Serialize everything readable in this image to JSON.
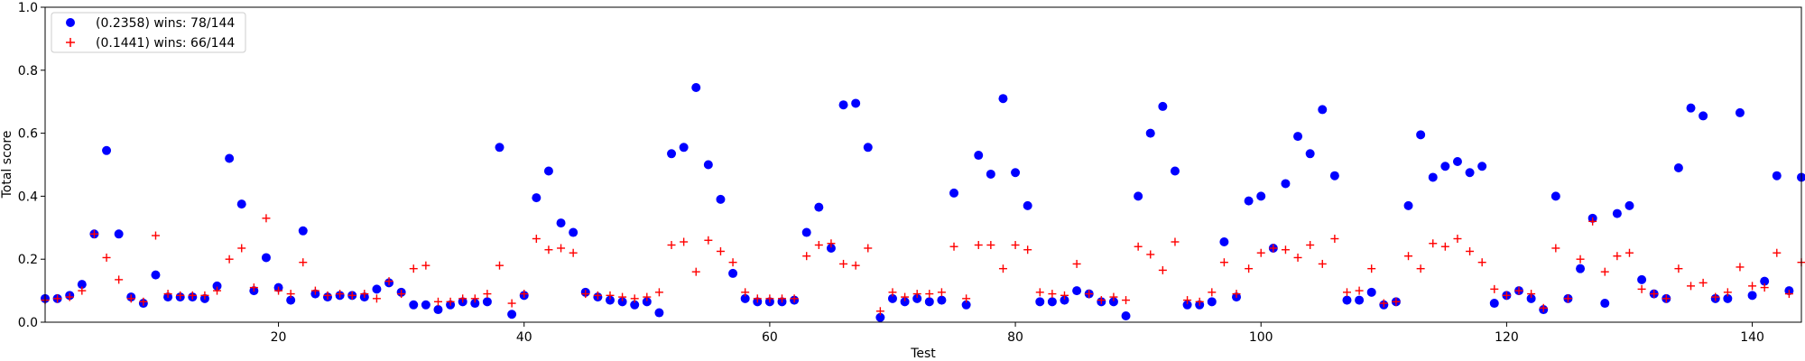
{
  "chart_data": {
    "type": "scatter",
    "xlabel": "Test",
    "ylabel": "Total score",
    "xlim": [
      1,
      144
    ],
    "ylim": [
      0,
      1.0
    ],
    "xticks": [
      20,
      40,
      60,
      80,
      100,
      120,
      140
    ],
    "yticks": [
      0.0,
      0.2,
      0.4,
      0.6,
      0.8,
      1.0
    ],
    "xtick_labels": [
      "20",
      "40",
      "60",
      "80",
      "100",
      "120",
      "140"
    ],
    "ytick_labels": [
      "0.0",
      "0.2",
      "0.4",
      "0.6",
      "0.8",
      "1.0"
    ],
    "grid": false,
    "legend_position": "top-left",
    "series": [
      {
        "name": "(0.2358) wins: 78/144",
        "marker": "circle",
        "color": "#0000ff",
        "values": [
          0.075,
          0.075,
          0.085,
          0.12,
          0.28,
          0.545,
          0.28,
          0.08,
          0.06,
          0.15,
          0.08,
          0.08,
          0.08,
          0.075,
          0.115,
          0.52,
          0.375,
          0.1,
          0.205,
          0.11,
          0.07,
          0.29,
          0.09,
          0.08,
          0.085,
          0.085,
          0.08,
          0.105,
          0.125,
          0.095,
          0.055,
          0.055,
          0.04,
          0.055,
          0.065,
          0.06,
          0.065,
          0.555,
          0.025,
          0.085,
          0.395,
          0.48,
          0.315,
          0.285,
          0.095,
          0.08,
          0.07,
          0.065,
          0.055,
          0.065,
          0.03,
          0.535,
          0.555,
          0.745,
          0.5,
          0.39,
          0.155,
          0.075,
          0.065,
          0.065,
          0.065,
          0.07,
          0.285,
          0.365,
          0.235,
          0.69,
          0.695,
          0.555,
          0.015,
          0.075,
          0.065,
          0.075,
          0.065,
          0.07,
          0.41,
          0.055,
          0.53,
          0.47,
          0.71,
          0.475,
          0.37,
          0.065,
          0.065,
          0.07,
          0.1,
          0.09,
          0.065,
          0.065,
          0.02,
          0.4,
          0.6,
          0.685,
          0.48,
          0.055,
          0.055,
          0.065,
          0.255,
          0.08,
          0.385,
          0.4,
          0.235,
          0.44,
          0.59,
          0.535,
          0.675,
          0.465,
          0.07,
          0.07,
          0.095,
          0.055,
          0.065,
          0.37,
          0.595,
          0.46,
          0.495,
          0.51,
          0.475,
          0.495,
          0.06,
          0.085,
          0.1,
          0.075,
          0.04,
          0.4,
          0.075,
          0.17,
          0.33,
          0.06,
          0.345,
          0.37,
          0.135,
          0.09,
          0.075,
          0.49,
          0.68,
          0.655,
          0.075,
          0.075,
          0.665,
          0.085,
          0.13,
          0.465,
          0.1,
          0.46
        ]
      },
      {
        "name": "(0.1441) wins: 66/144",
        "marker": "plus",
        "color": "#ff0000",
        "values": [
          0.07,
          0.075,
          0.08,
          0.1,
          0.28,
          0.205,
          0.135,
          0.075,
          0.065,
          0.275,
          0.09,
          0.085,
          0.085,
          0.085,
          0.1,
          0.2,
          0.235,
          0.11,
          0.33,
          0.1,
          0.09,
          0.19,
          0.1,
          0.085,
          0.09,
          0.085,
          0.09,
          0.075,
          0.13,
          0.09,
          0.17,
          0.18,
          0.065,
          0.065,
          0.075,
          0.075,
          0.09,
          0.18,
          0.06,
          0.09,
          0.265,
          0.23,
          0.235,
          0.22,
          0.09,
          0.085,
          0.085,
          0.08,
          0.075,
          0.08,
          0.095,
          0.245,
          0.255,
          0.16,
          0.26,
          0.225,
          0.19,
          0.095,
          0.075,
          0.075,
          0.075,
          0.075,
          0.21,
          0.245,
          0.25,
          0.185,
          0.18,
          0.235,
          0.035,
          0.095,
          0.08,
          0.09,
          0.09,
          0.095,
          0.24,
          0.075,
          0.245,
          0.245,
          0.17,
          0.245,
          0.23,
          0.095,
          0.09,
          0.085,
          0.185,
          0.09,
          0.07,
          0.08,
          0.07,
          0.24,
          0.215,
          0.165,
          0.255,
          0.07,
          0.065,
          0.095,
          0.19,
          0.09,
          0.17,
          0.22,
          0.235,
          0.23,
          0.205,
          0.245,
          0.185,
          0.265,
          0.095,
          0.1,
          0.17,
          0.06,
          0.065,
          0.21,
          0.17,
          0.25,
          0.24,
          0.265,
          0.225,
          0.19,
          0.105,
          0.085,
          0.1,
          0.09,
          0.045,
          0.235,
          0.075,
          0.2,
          0.32,
          0.16,
          0.21,
          0.22,
          0.105,
          0.09,
          0.075,
          0.17,
          0.115,
          0.125,
          0.08,
          0.095,
          0.175,
          0.115,
          0.11,
          0.22,
          0.09,
          0.19
        ]
      }
    ]
  }
}
